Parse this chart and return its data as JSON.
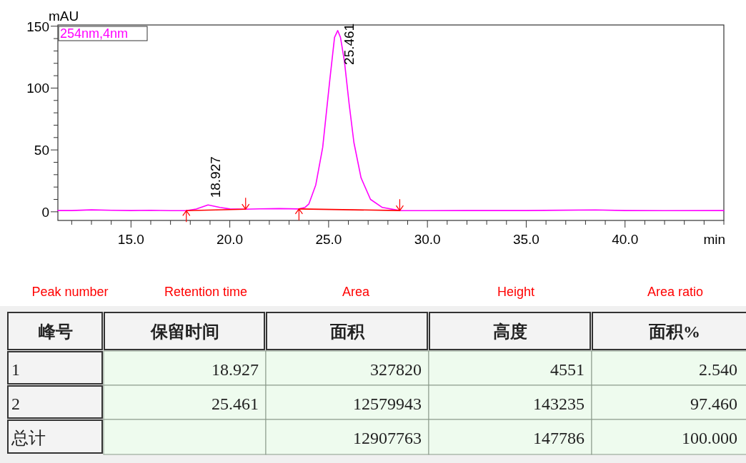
{
  "chart_data": [
    {
      "type": "line",
      "xlabel": "min",
      "ylabel": "mAU",
      "legend": "top left",
      "grid": false,
      "marker": "none",
      "line_style": "solid",
      "xlim": [
        11.3,
        45
      ],
      "ylim": [
        -7,
        151
      ],
      "xticks": [
        {
          "value": 12,
          "label": null
        },
        {
          "value": 13,
          "label": null
        },
        {
          "value": 14,
          "label": null
        },
        {
          "value": 15,
          "label": "15.0"
        },
        {
          "value": 16,
          "label": null
        },
        {
          "value": 17,
          "label": null
        },
        {
          "value": 18,
          "label": null
        },
        {
          "value": 19,
          "label": null
        },
        {
          "value": 20,
          "label": "20.0"
        },
        {
          "value": 21,
          "label": null
        },
        {
          "value": 22,
          "label": null
        },
        {
          "value": 23,
          "label": null
        },
        {
          "value": 24,
          "label": null
        },
        {
          "value": 25,
          "label": "25.0"
        },
        {
          "value": 26,
          "label": null
        },
        {
          "value": 27,
          "label": null
        },
        {
          "value": 28,
          "label": null
        },
        {
          "value": 29,
          "label": null
        },
        {
          "value": 30,
          "label": "30.0"
        },
        {
          "value": 31,
          "label": null
        },
        {
          "value": 32,
          "label": null
        },
        {
          "value": 33,
          "label": null
        },
        {
          "value": 34,
          "label": null
        },
        {
          "value": 35,
          "label": "35.0"
        },
        {
          "value": 36,
          "label": null
        },
        {
          "value": 37,
          "label": null
        },
        {
          "value": 38,
          "label": null
        },
        {
          "value": 39,
          "label": null
        },
        {
          "value": 40,
          "label": "40.0"
        },
        {
          "value": 41,
          "label": null
        },
        {
          "value": 42,
          "label": null
        },
        {
          "value": 43,
          "label": null
        },
        {
          "value": 44,
          "label": null
        },
        {
          "value": 45,
          "label": null
        }
      ],
      "yticks": [
        0,
        {
          "value": 10,
          "label": null
        },
        {
          "value": 20,
          "label": null
        },
        {
          "value": 30,
          "label": null
        },
        {
          "value": 40,
          "label": null
        },
        50,
        {
          "value": 60,
          "label": null
        },
        {
          "value": 70,
          "label": null
        },
        {
          "value": 80,
          "label": null
        },
        {
          "value": 90,
          "label": null
        },
        100,
        {
          "value": 110,
          "label": null
        },
        {
          "value": 120,
          "label": null
        },
        {
          "value": 130,
          "label": null
        },
        {
          "value": 140,
          "label": null
        },
        150
      ],
      "series": [
        {
          "name": "254nm,4nm",
          "color": "#ff00ff",
          "x": [
            11.3,
            12.0,
            13.0,
            14.0,
            15.0,
            16.0,
            17.0,
            17.8,
            18.3,
            18.9,
            19.5,
            20.0,
            20.8,
            21.5,
            22.5,
            23.5,
            23.8,
            24.0,
            24.35,
            24.7,
            25.07,
            25.3,
            25.46,
            25.6,
            25.8,
            26.04,
            26.28,
            26.64,
            27.12,
            27.72,
            28.6,
            30,
            32,
            35,
            38.5,
            40,
            42,
            45
          ],
          "values": [
            1.0,
            1.0,
            1.6,
            1.2,
            1.0,
            1.2,
            0.9,
            0.9,
            2.2,
            5.5,
            3.5,
            2.3,
            2.1,
            2.4,
            2.6,
            2.3,
            3.5,
            6.3,
            21.7,
            52,
            108,
            141,
            146.5,
            141,
            121.7,
            87,
            56,
            27.5,
            10,
            3.5,
            1.0,
            0.9,
            1.0,
            1.0,
            1.5,
            1.0,
            0.9,
            1.0
          ]
        },
        {
          "color": "#ff0000",
          "x": [
            17.8,
            20.8
          ],
          "values": [
            0.9,
            2.1
          ]
        },
        {
          "color": "#ff0000",
          "x": [
            23.5,
            28.6
          ],
          "values": [
            2.3,
            1.0
          ]
        }
      ],
      "annotations": [
        {
          "text": "18.927",
          "x": 18.927,
          "y": 5.5
        },
        {
          "text": "25.461",
          "x": 25.461,
          "y": 146.5
        }
      ]
    },
    {
      "type": "other",
      "annotations": [
        "Peak number",
        "Retention time",
        "Area",
        "Height",
        "Area ratio"
      ],
      "categories": [
        "峰号",
        "保留时间",
        "面积",
        "高度",
        "面积%"
      ],
      "y_categories": [
        "1",
        "2",
        "总计"
      ],
      "cell_labels": [
        [
          "18.927",
          "327820",
          "4551",
          "2.540"
        ],
        [
          "25.461",
          "12579943",
          "143235",
          "97.460"
        ],
        [
          null,
          "12907763",
          "147786",
          "100.000"
        ]
      ]
    }
  ]
}
